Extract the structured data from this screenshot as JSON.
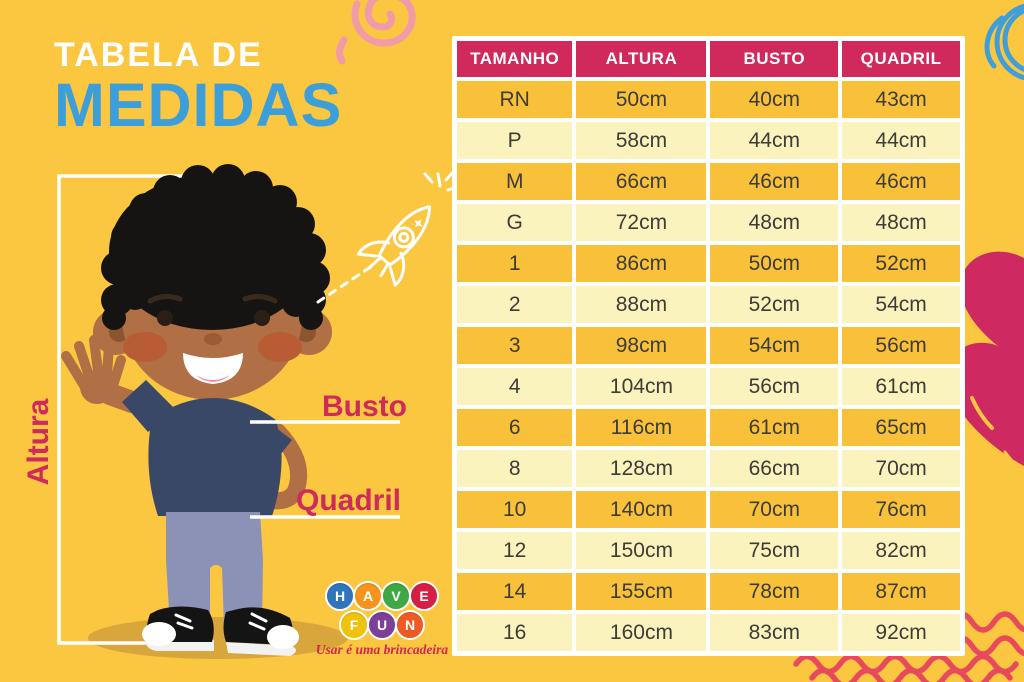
{
  "title": {
    "line1": "TABELA DE",
    "line2": "MEDIDAS"
  },
  "figure_labels": {
    "height": "Altura",
    "bust": "Busto",
    "hip": "Quadril"
  },
  "chart_data": {
    "type": "table",
    "title": "TABELA DE MEDIDAS",
    "columns": [
      "TAMANHO",
      "ALTURA",
      "BUSTO",
      "QUADRIL"
    ],
    "rows": [
      [
        "RN",
        "50cm",
        "40cm",
        "43cm"
      ],
      [
        "P",
        "58cm",
        "44cm",
        "44cm"
      ],
      [
        "M",
        "66cm",
        "46cm",
        "46cm"
      ],
      [
        "G",
        "72cm",
        "48cm",
        "48cm"
      ],
      [
        "1",
        "86cm",
        "50cm",
        "52cm"
      ],
      [
        "2",
        "88cm",
        "52cm",
        "54cm"
      ],
      [
        "3",
        "98cm",
        "54cm",
        "56cm"
      ],
      [
        "4",
        "104cm",
        "56cm",
        "61cm"
      ],
      [
        "6",
        "116cm",
        "61cm",
        "65cm"
      ],
      [
        "8",
        "128cm",
        "66cm",
        "70cm"
      ],
      [
        "10",
        "140cm",
        "70cm",
        "76cm"
      ],
      [
        "12",
        "150cm",
        "75cm",
        "82cm"
      ],
      [
        "14",
        "155cm",
        "78cm",
        "87cm"
      ],
      [
        "16",
        "160cm",
        "83cm",
        "92cm"
      ]
    ],
    "layout_hints": {
      "header_style": "crimson band, white bold text",
      "row_striping": "alternating dark-yellow / pale-yellow starting dark"
    }
  },
  "logo": {
    "rows": [
      [
        {
          "ch": "H",
          "color": "#2E75BB"
        },
        {
          "ch": "A",
          "color": "#F7941E"
        },
        {
          "ch": "V",
          "color": "#3FA845"
        },
        {
          "ch": "E",
          "color": "#D42045"
        }
      ],
      [
        {
          "ch": "F",
          "color": "#EFC20B"
        },
        {
          "ch": "U",
          "color": "#7D3F98"
        },
        {
          "ch": "N",
          "color": "#EE5A24"
        }
      ]
    ],
    "tagline": "Usar é uma brincadeira"
  },
  "colors": {
    "background": "#FBC640",
    "table_header": "#CF2A5B",
    "row_dark": "#F8C139",
    "row_light": "#FBF3BD",
    "cell_text": "#3E3C38",
    "title_blue": "#3D9FD9",
    "accent_pink": "#CE2A5C",
    "wave_coral": "#E8495C",
    "spiral_pink": "#F29BA8",
    "scribble_blue": "#3E9FD9",
    "heart_pink": "#CE2960"
  }
}
